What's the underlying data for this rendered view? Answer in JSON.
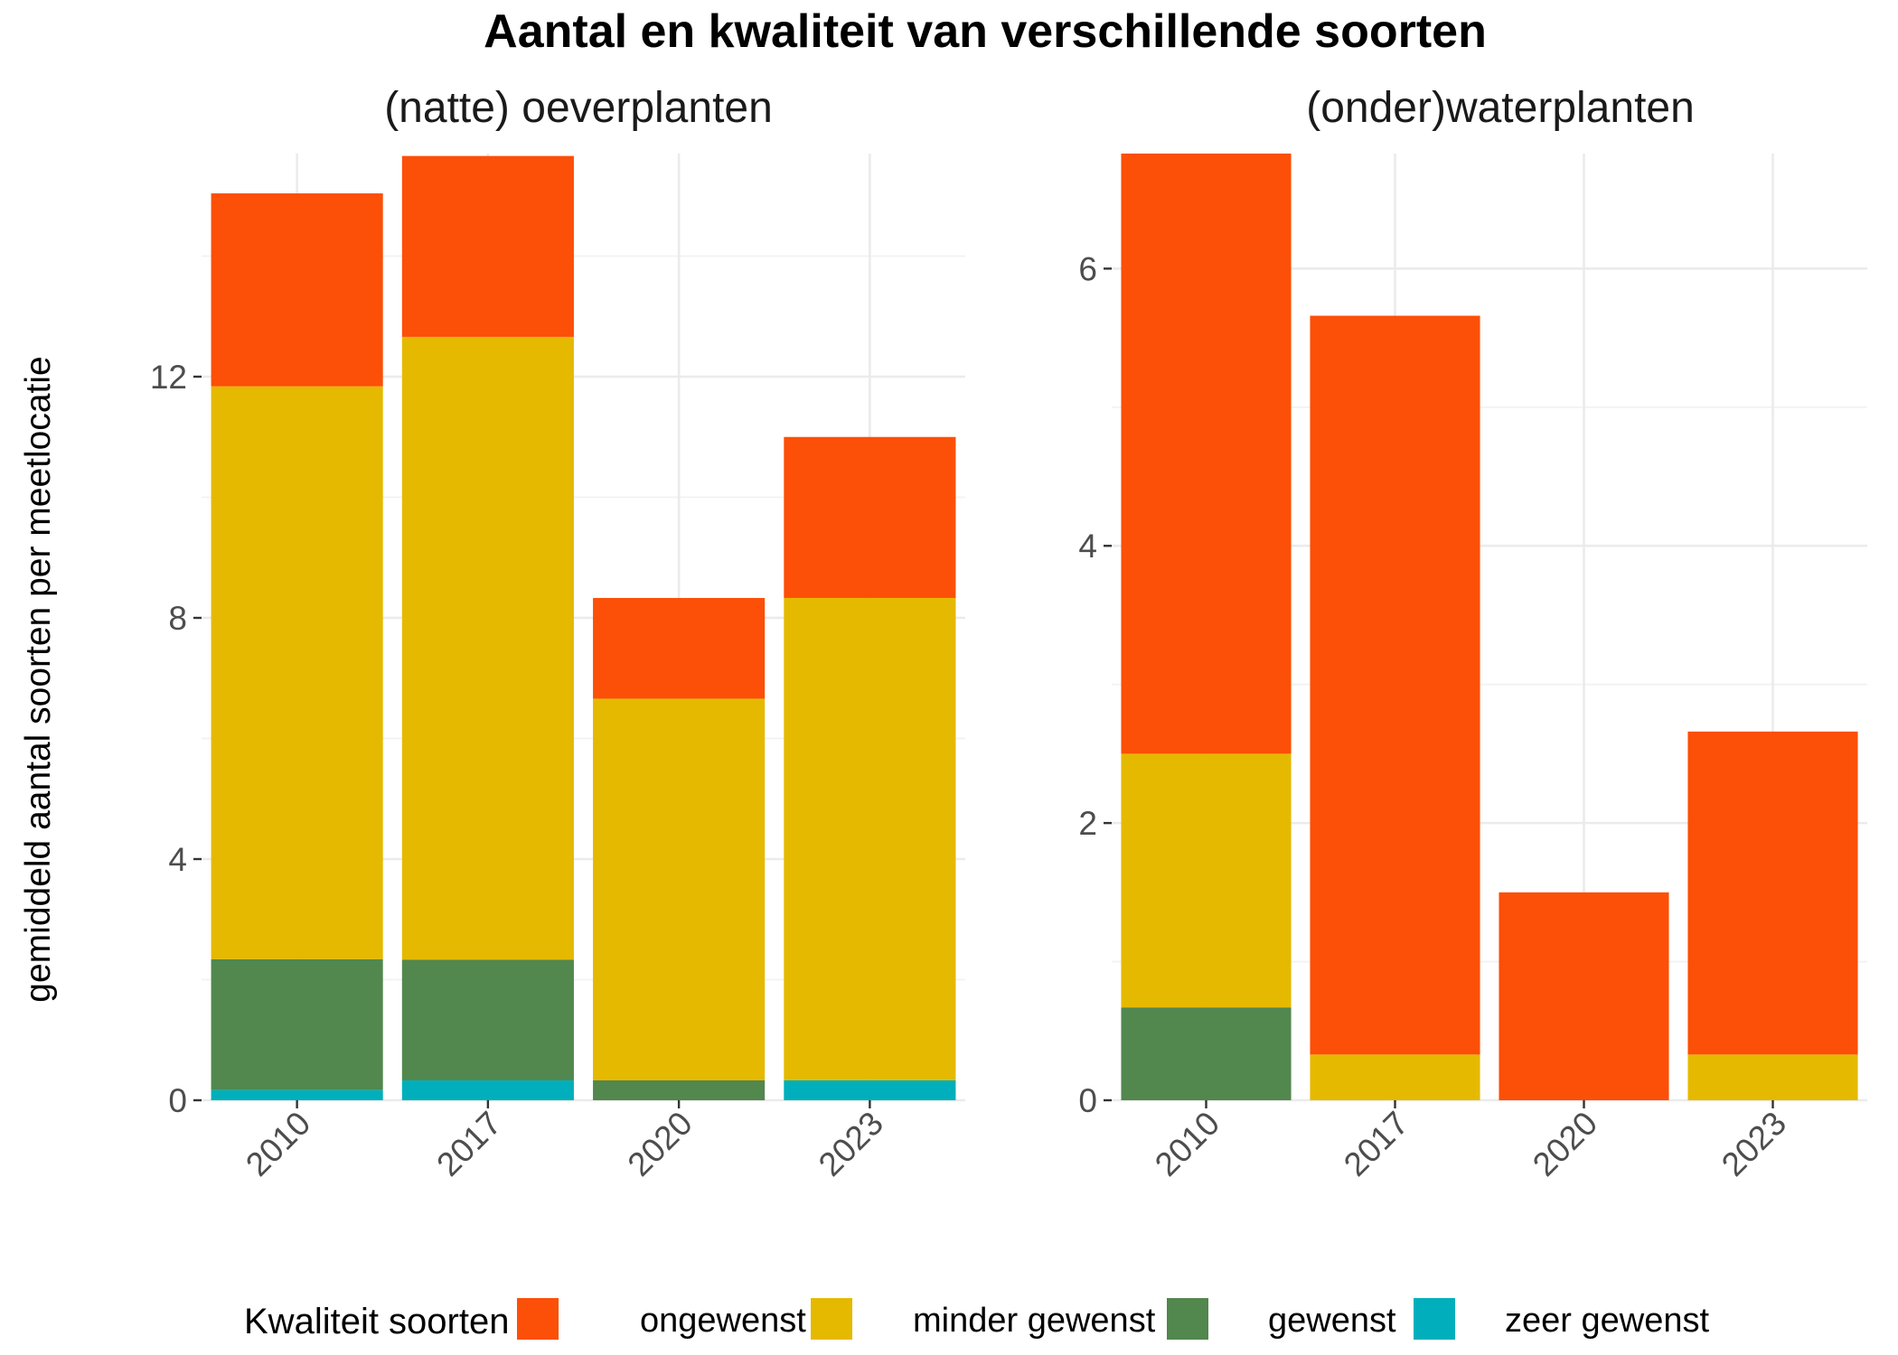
{
  "chart_data": {
    "type": "bar",
    "stacked": true,
    "title": "Aantal en kwaliteit van verschillende soorten",
    "ylabel": "gemiddeld aantal soorten per meetlocatie",
    "xlabel": "",
    "legend": {
      "title": "Kwaliteit soorten",
      "position": "bottom",
      "entries": [
        "ongewenst",
        "minder gewenst",
        "gewenst",
        "zeer gewenst"
      ]
    },
    "colors": {
      "ongewenst": "#FC4F08",
      "minder gewenst": "#E5B900",
      "gewenst": "#52874E",
      "zeer gewenst": "#00AFBB"
    },
    "grid": true,
    "panels": [
      {
        "title": "(natte) oeverplanten",
        "categories": [
          "2010",
          "2017",
          "2020",
          "2023"
        ],
        "ylim": [
          0,
          15.7
        ],
        "yticks": [
          0,
          4,
          8,
          12
        ],
        "yticks_labels": [
          "0",
          "4",
          "8",
          "12"
        ],
        "series": [
          {
            "name": "zeer gewenst",
            "values": [
              0.17,
              0.33,
              0,
              0.33
            ]
          },
          {
            "name": "gewenst",
            "values": [
              2.17,
              2.0,
              0.33,
              0
            ]
          },
          {
            "name": "minder gewenst",
            "values": [
              9.5,
              10.33,
              6.33,
              8.0
            ]
          },
          {
            "name": "ongewenst",
            "values": [
              3.2,
              3.0,
              1.67,
              2.67
            ]
          }
        ]
      },
      {
        "title": "(onder)waterplanten",
        "categories": [
          "2010",
          "2017",
          "2020",
          "2023"
        ],
        "ylim": [
          0,
          6.83
        ],
        "yticks": [
          0,
          2,
          4,
          6
        ],
        "yticks_labels": [
          "0",
          "2",
          "4",
          "6"
        ],
        "series": [
          {
            "name": "zeer gewenst",
            "values": [
              0,
              0,
              0,
              0
            ]
          },
          {
            "name": "gewenst",
            "values": [
              0.67,
              0,
              0,
              0
            ]
          },
          {
            "name": "minder gewenst",
            "values": [
              1.83,
              0.33,
              0,
              0.33
            ]
          },
          {
            "name": "ongewenst",
            "values": [
              4.33,
              5.33,
              1.5,
              2.33
            ]
          }
        ]
      }
    ]
  }
}
